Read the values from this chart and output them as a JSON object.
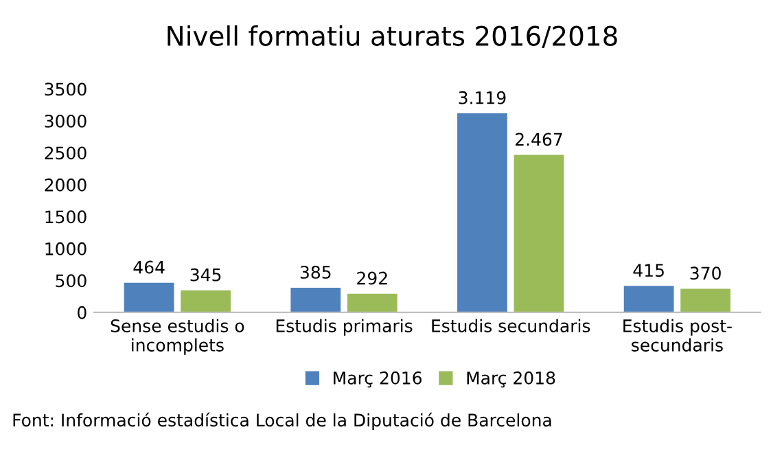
{
  "chart_data": {
    "type": "bar",
    "title": "Nivell formatiu aturats 2016/2018",
    "categories": [
      "Sense estudis o\nincomplets",
      "Estudis primaris",
      "Estudis secundaris",
      "Estudis post-\nsecundaris"
    ],
    "series": [
      {
        "name": "Març 2016",
        "color": "#4f81bd",
        "values": [
          464,
          385,
          3119,
          415
        ],
        "value_labels": [
          "464",
          "385",
          "3.119",
          "415"
        ]
      },
      {
        "name": "Març 2018",
        "color": "#9bbb59",
        "values": [
          345,
          292,
          2467,
          370
        ],
        "value_labels": [
          "345",
          "292",
          "2.467",
          "370"
        ]
      }
    ],
    "ylim": [
      0,
      3500
    ],
    "yticks": [
      0,
      500,
      1000,
      1500,
      2000,
      2500,
      3000,
      3500
    ],
    "grid": false,
    "legend": "bottom",
    "annotations": [
      "Font: Informació estadística Local de la Diputació de Barcelona"
    ]
  }
}
